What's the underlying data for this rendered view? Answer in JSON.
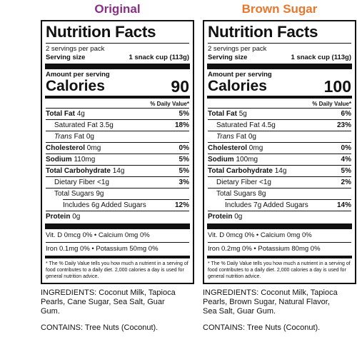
{
  "colors": {
    "original_title": "#8a2f87",
    "brown_sugar_title": "#e8772d"
  },
  "panels": [
    {
      "variant": "Original",
      "title": "Nutrition Facts",
      "servings_per_pack": "2 servings per pack",
      "serving_size_label": "Serving size",
      "serving_size_value": "1 snack cup (113g)",
      "amount_per_serving": "Amount per serving",
      "calories_label": "Calories",
      "calories_value": "90",
      "dv_header": "% Daily Value*",
      "total_fat_label": "Total Fat",
      "total_fat_amount": "4g",
      "total_fat_pct": "5%",
      "sat_fat_label": "Saturated Fat 3.5g",
      "sat_fat_pct": "18%",
      "trans_fat_word": "Trans",
      "trans_fat_rest": " Fat 0g",
      "cholesterol_label": "Cholesterol",
      "cholesterol_amount": "0mg",
      "cholesterol_pct": "0%",
      "sodium_label": "Sodium",
      "sodium_amount": "110mg",
      "sodium_pct": "5%",
      "carb_label": "Total Carbohydrate",
      "carb_amount": "14g",
      "carb_pct": "5%",
      "fiber_label": "Dietary Fiber <1g",
      "fiber_pct": "3%",
      "sugars_label": "Total Sugars 9g",
      "added_sugars_label": "Includes 6g Added Sugars",
      "added_sugars_pct": "12%",
      "protein_label": "Protein",
      "protein_amount": "0g",
      "vit_line": "Vit. D 0mcg 0% • Calcium 0mg  0%",
      "iron_line": "Iron 0.1mg 0% • Potassium 50mg 0%",
      "footnote": "* The % Daily Value tells you how much a nutrient in a serving of food contributes to a daily diet. 2,000 calories a day is used for general nutrition advice.",
      "ingredients": "INGREDIENTS: Coconut Milk, Tapioca Pearls, Cane Sugar, Sea Salt, Guar Gum.",
      "contains": "CONTAINS: Tree Nuts (Coconut)."
    },
    {
      "variant": "Brown Sugar",
      "title": "Nutrition Facts",
      "servings_per_pack": "2 servings per pack",
      "serving_size_label": "Serving size",
      "serving_size_value": "1 snack cup (113g)",
      "amount_per_serving": "Amount per serving",
      "calories_label": "Calories",
      "calories_value": "100",
      "dv_header": "% Daily Value*",
      "total_fat_label": "Total Fat",
      "total_fat_amount": "5g",
      "total_fat_pct": "6%",
      "sat_fat_label": "Saturated Fat 4.5g",
      "sat_fat_pct": "23%",
      "trans_fat_word": "Trans",
      "trans_fat_rest": " Fat 0g",
      "cholesterol_label": "Cholesterol",
      "cholesterol_amount": "0mg",
      "cholesterol_pct": "0%",
      "sodium_label": "Sodium",
      "sodium_amount": "100mg",
      "sodium_pct": "4%",
      "carb_label": "Total Carbohydrate",
      "carb_amount": "14g",
      "carb_pct": "5%",
      "fiber_label": "Dietary Fiber <1g",
      "fiber_pct": "2%",
      "sugars_label": "Total Sugars 8g",
      "added_sugars_label": "Includes 7g Added Sugars",
      "added_sugars_pct": "14%",
      "protein_label": "Protein",
      "protein_amount": "0g",
      "vit_line": "Vit. D 0mcg 0% • Calcium 0mg 0%",
      "iron_line": "Iron 0.2mg 0% • Potassium 80mg 0%",
      "footnote": "* The % Daily Value tells you how much a nutrient in a serving of food contributes to a daily diet. 2,000 calories a day is used for general nutrition advice.",
      "ingredients": "INGREDIENTS: Coconut Milk, Tapioca Pearls, Brown Sugar, Natural Flavor, Sea Salt, Guar Gum.",
      "contains": "CONTAINS: Tree Nuts (Coconut)."
    }
  ]
}
